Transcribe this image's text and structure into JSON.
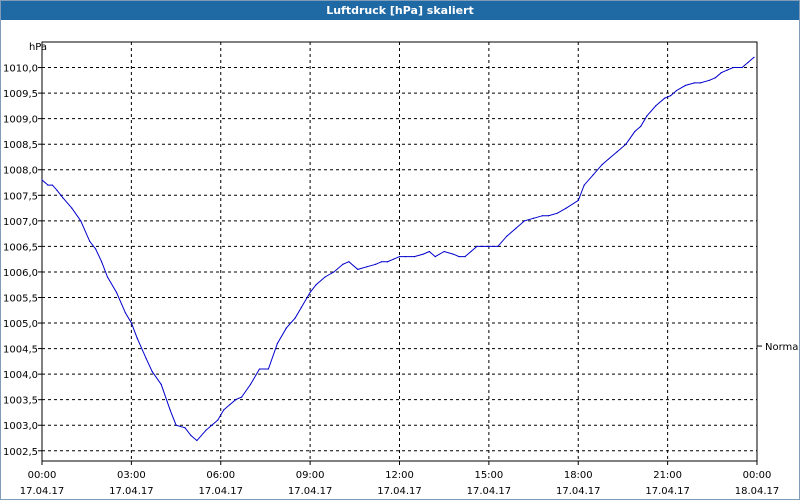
{
  "window": {
    "title": "Luftdruck [hPa] skaliert"
  },
  "chart_data": {
    "type": "line",
    "title": "Luftdruck [hPa] skaliert",
    "ylabel": "hPa",
    "xlabel": "",
    "ylim": [
      1002.3,
      1010.5
    ],
    "xlim_hours": [
      0,
      24
    ],
    "grid": true,
    "line_color": "#0000cc",
    "yticks": [
      {
        "v": 1002.5,
        "label": "1002,5"
      },
      {
        "v": 1003.0,
        "label": "1003,0"
      },
      {
        "v": 1003.5,
        "label": "1003,5"
      },
      {
        "v": 1004.0,
        "label": "1004,0"
      },
      {
        "v": 1004.5,
        "label": "1004,5"
      },
      {
        "v": 1005.0,
        "label": "1005,0"
      },
      {
        "v": 1005.5,
        "label": "1005,5"
      },
      {
        "v": 1006.0,
        "label": "1006,0"
      },
      {
        "v": 1006.5,
        "label": "1006,5"
      },
      {
        "v": 1007.0,
        "label": "1007,0"
      },
      {
        "v": 1007.5,
        "label": "1007,5"
      },
      {
        "v": 1008.0,
        "label": "1008,0"
      },
      {
        "v": 1008.5,
        "label": "1008,5"
      },
      {
        "v": 1009.0,
        "label": "1009,0"
      },
      {
        "v": 1009.5,
        "label": "1009,5"
      },
      {
        "v": 1010.0,
        "label": "1010,0"
      }
    ],
    "xticks": [
      {
        "h": 0,
        "time": "00:00",
        "date": "17.04.17"
      },
      {
        "h": 3,
        "time": "03:00",
        "date": "17.04.17"
      },
      {
        "h": 6,
        "time": "06:00",
        "date": "17.04.17"
      },
      {
        "h": 9,
        "time": "09:00",
        "date": "17.04.17"
      },
      {
        "h": 12,
        "time": "12:00",
        "date": "17.04.17"
      },
      {
        "h": 15,
        "time": "15:00",
        "date": "17.04.17"
      },
      {
        "h": 18,
        "time": "18:00",
        "date": "17.04.17"
      },
      {
        "h": 21,
        "time": "21:00",
        "date": "17.04.17"
      },
      {
        "h": 24,
        "time": "00:00",
        "date": "18.04.17"
      }
    ],
    "reference": {
      "label": "Normal",
      "value": 1004.55
    },
    "series": [
      {
        "x": [
          0.0,
          0.1,
          0.2,
          0.35,
          0.5,
          0.7,
          1.0,
          1.3,
          1.6,
          1.8,
          2.0,
          2.2,
          2.5,
          2.8,
          3.0,
          3.2,
          3.5,
          3.7,
          4.0,
          4.3,
          4.5,
          4.8,
          5.0,
          5.2,
          5.5,
          5.7,
          5.9,
          6.1,
          6.3,
          6.5,
          6.7,
          7.0,
          7.3,
          7.6,
          7.9,
          8.2,
          8.5,
          8.7,
          9.0,
          9.2,
          9.5,
          9.8,
          10.1,
          10.3,
          10.6,
          10.9,
          11.2,
          11.4,
          11.6,
          11.8,
          12.0,
          12.2,
          12.5,
          12.8,
          13.0,
          13.2,
          13.5,
          13.8,
          14.0,
          14.2,
          14.4,
          14.6,
          14.8,
          15.0,
          15.3,
          15.6,
          15.9,
          16.2,
          16.5,
          16.8,
          17.0,
          17.3,
          17.6,
          18.0,
          18.2,
          18.5,
          18.8,
          19.0,
          19.3,
          19.6,
          19.9,
          20.1,
          20.3,
          20.6,
          20.9,
          21.1,
          21.3,
          21.6,
          21.9,
          22.1,
          22.4,
          22.6,
          22.8,
          23.0,
          23.2,
          23.5,
          23.7,
          23.9
        ],
        "values": [
          1007.8,
          1007.75,
          1007.7,
          1007.7,
          1007.6,
          1007.45,
          1007.25,
          1007.0,
          1006.6,
          1006.45,
          1006.2,
          1005.9,
          1005.6,
          1005.2,
          1005.0,
          1004.7,
          1004.3,
          1004.05,
          1003.8,
          1003.3,
          1003.0,
          1002.95,
          1002.8,
          1002.7,
          1002.9,
          1003.0,
          1003.1,
          1003.3,
          1003.4,
          1003.5,
          1003.55,
          1003.8,
          1004.1,
          1004.1,
          1004.6,
          1004.9,
          1005.1,
          1005.3,
          1005.6,
          1005.75,
          1005.9,
          1006.0,
          1006.15,
          1006.2,
          1006.05,
          1006.1,
          1006.15,
          1006.2,
          1006.2,
          1006.25,
          1006.3,
          1006.3,
          1006.3,
          1006.35,
          1006.4,
          1006.3,
          1006.4,
          1006.35,
          1006.3,
          1006.3,
          1006.4,
          1006.5,
          1006.5,
          1006.5,
          1006.5,
          1006.7,
          1006.85,
          1007.0,
          1007.05,
          1007.1,
          1007.1,
          1007.15,
          1007.25,
          1007.4,
          1007.7,
          1007.9,
          1008.1,
          1008.2,
          1008.35,
          1008.5,
          1008.75,
          1008.85,
          1009.05,
          1009.25,
          1009.4,
          1009.45,
          1009.55,
          1009.65,
          1009.7,
          1009.7,
          1009.75,
          1009.8,
          1009.9,
          1009.95,
          1010.0,
          1010.0,
          1010.1,
          1010.2
        ]
      }
    ]
  }
}
